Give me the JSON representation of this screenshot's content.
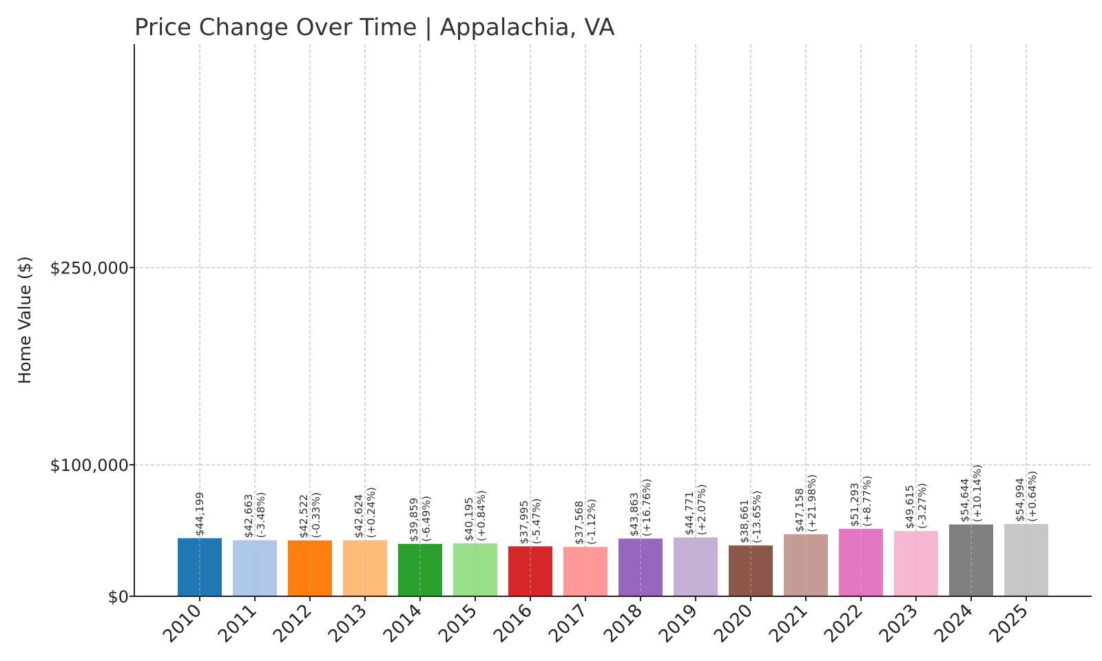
{
  "chart_data": {
    "type": "bar",
    "title": "Price Change Over Time | Appalachia, VA",
    "xlabel": "",
    "ylabel": "Home Value ($)",
    "ylim": [
      0,
      420000
    ],
    "yticks": [
      {
        "value": 0,
        "label": "$0"
      },
      {
        "value": 100000,
        "label": "$100,000"
      },
      {
        "value": 250000,
        "label": "$250,000"
      }
    ],
    "grid": true,
    "categories": [
      "2010",
      "2011",
      "2012",
      "2013",
      "2014",
      "2015",
      "2016",
      "2017",
      "2018",
      "2019",
      "2020",
      "2021",
      "2022",
      "2023",
      "2024",
      "2025"
    ],
    "values": [
      44199,
      42663,
      42522,
      42624,
      39859,
      40195,
      37995,
      37568,
      43863,
      44771,
      38661,
      47158,
      51293,
      49615,
      54644,
      54994
    ],
    "value_labels": [
      "$44,199",
      "$42,663",
      "$42,522",
      "$42,624",
      "$39,859",
      "$40,195",
      "$37,995",
      "$37,568",
      "$43,863",
      "$44,771",
      "$38,661",
      "$47,158",
      "$51,293",
      "$49,615",
      "$54,644",
      "$54,994"
    ],
    "change_labels": [
      "",
      "(-3.48%)",
      "(-0.33%)",
      "(+0.24%)",
      "(-6.49%)",
      "(+0.84%)",
      "(-5.47%)",
      "(-1.12%)",
      "(+16.76%)",
      "(+2.07%)",
      "(-13.65%)",
      "(+21.98%)",
      "(+8.77%)",
      "(-3.27%)",
      "(+10.14%)",
      "(+0.64%)"
    ],
    "colors": [
      "#1f77b4",
      "#aec7e8",
      "#ff7f0e",
      "#ffbb78",
      "#2ca02c",
      "#98df8a",
      "#d62728",
      "#ff9896",
      "#9467bd",
      "#c5b0d5",
      "#8c564b",
      "#c49c94",
      "#e377c2",
      "#f7b6d2",
      "#7f7f7f",
      "#c7c7c7"
    ]
  }
}
